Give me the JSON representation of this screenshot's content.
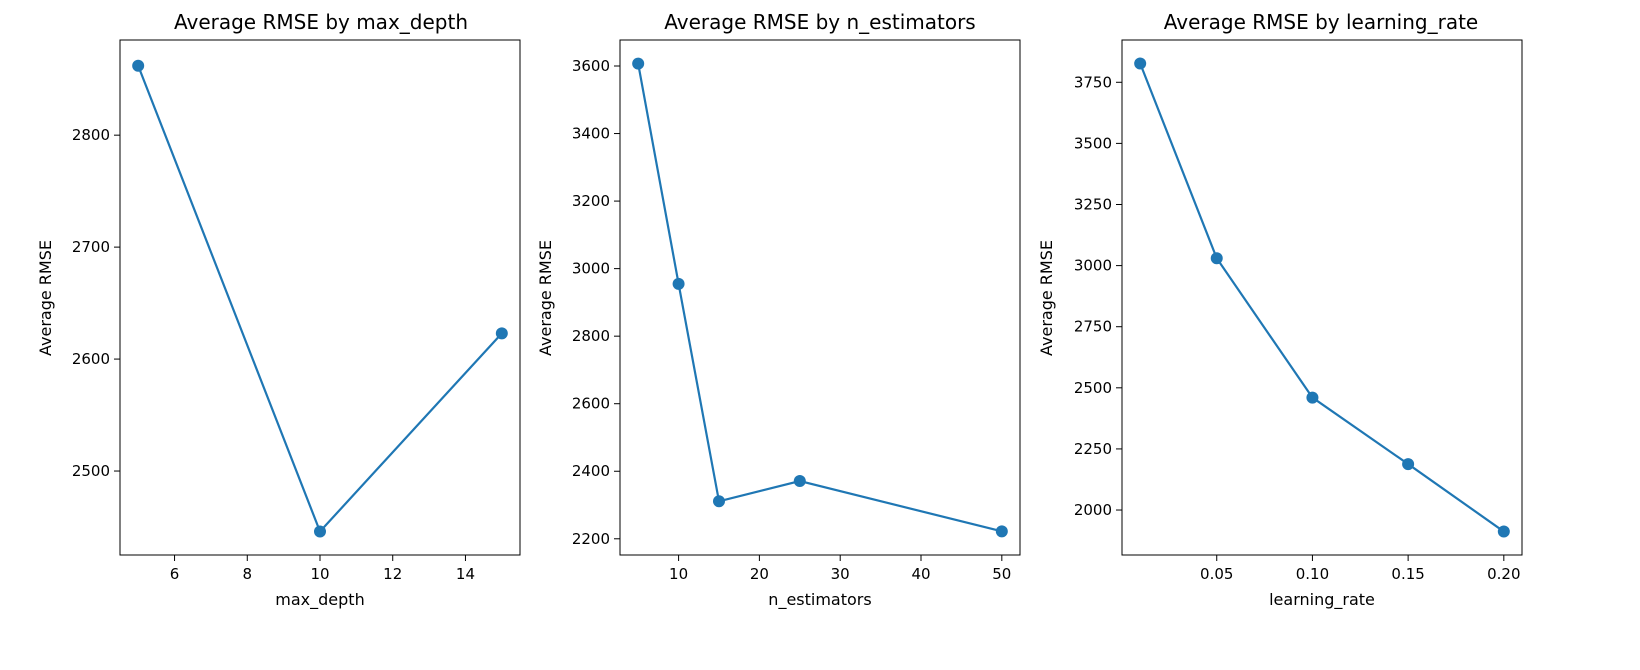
{
  "colors": {
    "series": "#1f77b4"
  },
  "chart_data": [
    {
      "type": "line",
      "title": "Average RMSE by max_depth",
      "xlabel": "max_depth",
      "ylabel": "Average RMSE",
      "x": [
        5,
        10,
        15
      ],
      "y": [
        2862,
        2446,
        2623
      ],
      "xlim": [
        4.5,
        15.5
      ],
      "ylim": [
        2425,
        2885
      ],
      "xticks": [
        6,
        8,
        10,
        12,
        14
      ],
      "yticks": [
        2500,
        2600,
        2700,
        2800
      ],
      "xtick_labels": [
        "6",
        "8",
        "10",
        "12",
        "14"
      ],
      "ytick_labels": [
        "2500",
        "2600",
        "2700",
        "2800"
      ],
      "marker": "circle",
      "grid": false,
      "legend": false
    },
    {
      "type": "line",
      "title": "Average RMSE by n_estimators",
      "xlabel": "n_estimators",
      "ylabel": "Average RMSE",
      "x": [
        5,
        10,
        15,
        25,
        50
      ],
      "y": [
        3607,
        2955,
        2311,
        2371,
        2222
      ],
      "xlim": [
        2.75,
        52.25
      ],
      "ylim": [
        2152,
        3677
      ],
      "xticks": [
        10,
        20,
        30,
        40,
        50
      ],
      "yticks": [
        2200,
        2400,
        2600,
        2800,
        3000,
        3200,
        3400,
        3600
      ],
      "xtick_labels": [
        "10",
        "20",
        "30",
        "40",
        "50"
      ],
      "ytick_labels": [
        "2200",
        "2400",
        "2600",
        "2800",
        "3000",
        "3200",
        "3400",
        "3600"
      ],
      "marker": "circle",
      "grid": false,
      "legend": false
    },
    {
      "type": "line",
      "title": "Average RMSE by learning_rate",
      "xlabel": "learning_rate",
      "ylabel": "Average RMSE",
      "x": [
        0.01,
        0.05,
        0.1,
        0.15,
        0.2
      ],
      "y": [
        3827,
        3030,
        2460,
        2188,
        1912
      ],
      "xlim": [
        0.0005,
        0.2095
      ],
      "ylim": [
        1816,
        3923
      ],
      "xticks": [
        0.05,
        0.1,
        0.15,
        0.2
      ],
      "yticks": [
        2000,
        2250,
        2500,
        2750,
        3000,
        3250,
        3500,
        3750
      ],
      "xtick_labels": [
        "0.05",
        "0.10",
        "0.15",
        "0.20"
      ],
      "ytick_labels": [
        "2000",
        "2250",
        "2500",
        "2750",
        "3000",
        "3250",
        "3500",
        "3750"
      ],
      "marker": "circle",
      "grid": false,
      "legend": false
    }
  ]
}
